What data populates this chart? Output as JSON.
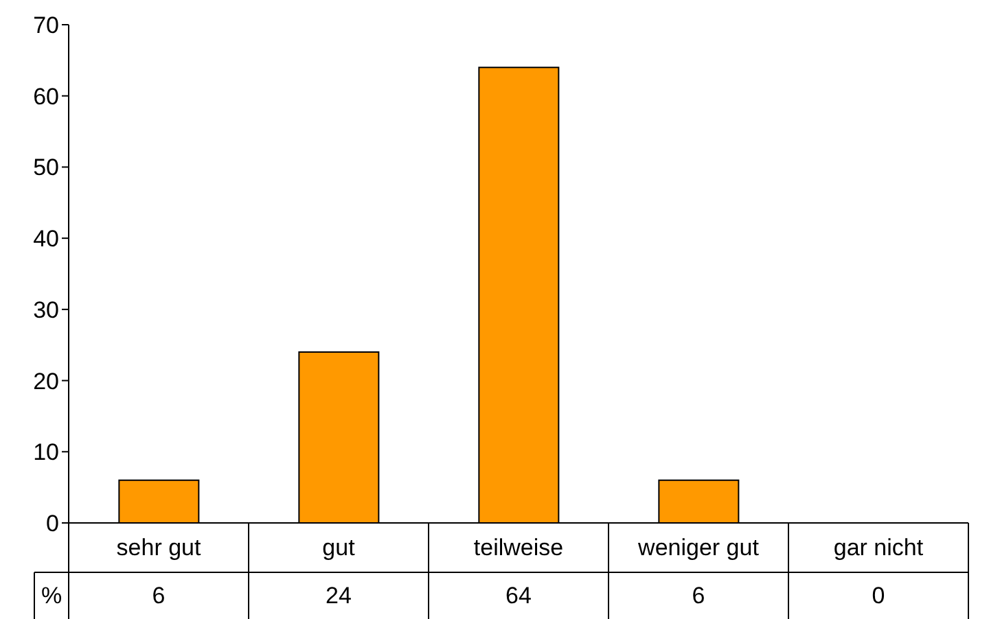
{
  "chart_data": {
    "type": "bar",
    "ylabel": "%",
    "categories": [
      "sehr gut",
      "gut",
      "teilweise",
      "weniger gut",
      "gar nicht"
    ],
    "values": [
      6,
      24,
      64,
      6,
      0
    ],
    "color": "#ff9900",
    "ylim": [
      0,
      70
    ],
    "yticks": [
      0,
      10,
      20,
      30,
      40,
      50,
      60,
      70
    ],
    "data_labels": true
  }
}
